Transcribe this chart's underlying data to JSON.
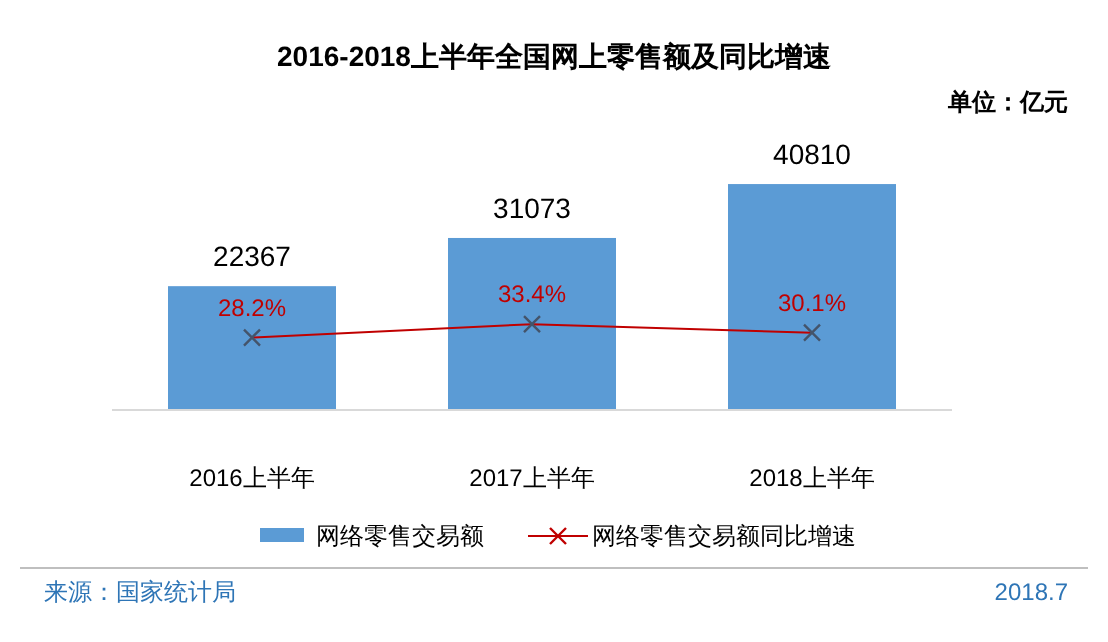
{
  "chart_data": {
    "type": "bar",
    "title": "2016-2018上半年全国网上零售额及同比增速",
    "categories": [
      "2016上半年",
      "2017上半年",
      "2018上半年"
    ],
    "series": [
      {
        "name": "网络零售交易额",
        "color": "#5b9bd5",
        "values": [
          22367,
          31073,
          40810
        ]
      },
      {
        "name": "网络零售交易额同比增速",
        "type": "line",
        "axis": "y2",
        "color": "#c00000",
        "marker": "cross",
        "values": [
          28.2,
          33.4,
          30.1
        ],
        "value_labels": [
          "28.2%",
          "33.4%",
          "30.1%"
        ]
      }
    ],
    "tick_labels": "x",
    "data_labels": true,
    "legend": "bottom",
    "annotations": [
      "单位：亿元",
      "来源：国家统计局",
      "2018.7"
    ]
  }
}
